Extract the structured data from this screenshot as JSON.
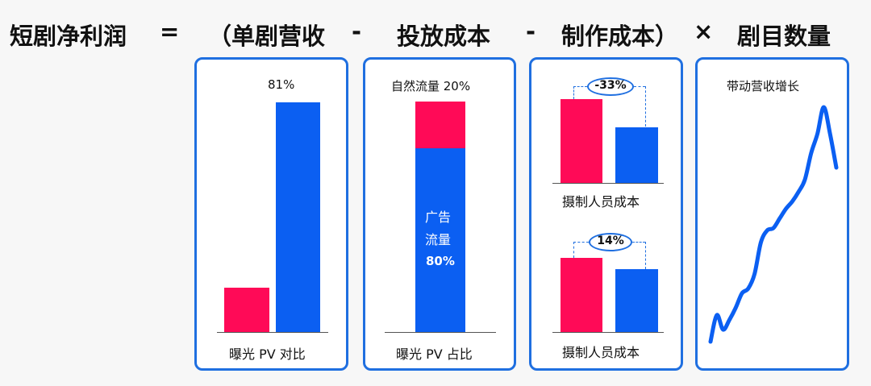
{
  "formula": {
    "net_profit": "短剧净利润",
    "equals": "=",
    "open_revenue": "（单剧营收",
    "minus1": "-",
    "ad_cost": "投放成本",
    "minus2": "-",
    "production_cost": "制作成本）",
    "times": "×",
    "drama_count": "剧目数量"
  },
  "panels": {
    "exposure": {
      "top_label": "81%",
      "bottom_label": "曝光 PV 对比"
    },
    "traffic": {
      "top_label": "自然流量 20%",
      "inner_line1": "广告",
      "inner_line2": "流量",
      "inner_value": "80%",
      "bottom_label": "曝光 PV 占比"
    },
    "staff_top": {
      "change": "-33%",
      "bottom_label": "摄制人员成本"
    },
    "staff_bottom": {
      "change": "14%",
      "bottom_label": "摄制人员成本"
    },
    "growth": {
      "top_label": "带动营收增长"
    }
  },
  "colors": {
    "red": "#ff0a57",
    "blue": "#0b5ff2",
    "frame": "#1f6fe0"
  },
  "chart_data": [
    {
      "type": "bar",
      "title": "",
      "categories": [
        "",
        ""
      ],
      "values": [
        19,
        100
      ],
      "data_labels": [
        "",
        "81%"
      ],
      "xlabel": "曝光 PV 对比",
      "note": "81%"
    },
    {
      "type": "bar",
      "title": "",
      "stacked": true,
      "series": [
        {
          "name": "自然流量",
          "values": [
            20
          ]
        },
        {
          "name": "广告流量",
          "values": [
            80
          ]
        }
      ],
      "xlabel": "曝光 PV 占比"
    },
    {
      "type": "bar",
      "categories": [
        "",
        ""
      ],
      "values": [
        100,
        67
      ],
      "change_label": "-33%",
      "xlabel": "摄制人员成本"
    },
    {
      "type": "bar",
      "categories": [
        "",
        ""
      ],
      "values": [
        100,
        86
      ],
      "change_label": "14%",
      "xlabel": "摄制人员成本"
    },
    {
      "type": "line",
      "title": "带动营收增长",
      "x": [
        0,
        1,
        2,
        3,
        4,
        5,
        6,
        7,
        8,
        9,
        10,
        11,
        12,
        13,
        14,
        15,
        16,
        17,
        18,
        19,
        20
      ],
      "y": [
        2,
        13,
        7,
        11,
        16,
        22,
        24,
        30,
        43,
        48,
        49,
        53,
        57,
        60,
        64,
        69,
        80,
        88,
        99,
        88,
        74
      ]
    }
  ]
}
